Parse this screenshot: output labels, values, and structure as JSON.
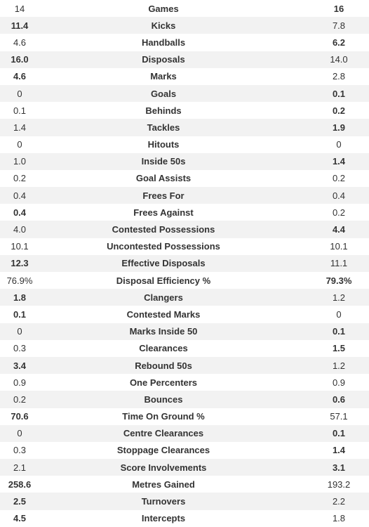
{
  "table": {
    "rows": [
      [
        "14",
        "Games",
        "16"
      ],
      [
        "11.4",
        "Kicks",
        "7.8"
      ],
      [
        "4.6",
        "Handballs",
        "6.2"
      ],
      [
        "16.0",
        "Disposals",
        "14.0"
      ],
      [
        "4.6",
        "Marks",
        "2.8"
      ],
      [
        "0",
        "Goals",
        "0.1"
      ],
      [
        "0.1",
        "Behinds",
        "0.2"
      ],
      [
        "1.4",
        "Tackles",
        "1.9"
      ],
      [
        "0",
        "Hitouts",
        "0"
      ],
      [
        "1.0",
        "Inside 50s",
        "1.4"
      ],
      [
        "0.2",
        "Goal Assists",
        "0.2"
      ],
      [
        "0.4",
        "Frees For",
        "0.4"
      ],
      [
        "0.4",
        "Frees Against",
        "0.2"
      ],
      [
        "4.0",
        "Contested Possessions",
        "4.4"
      ],
      [
        "10.1",
        "Uncontested Possessions",
        "10.1"
      ],
      [
        "12.3",
        "Effective Disposals",
        "11.1"
      ],
      [
        "76.9%",
        "Disposal Efficiency %",
        "79.3%"
      ],
      [
        "1.8",
        "Clangers",
        "1.2"
      ],
      [
        "0.1",
        "Contested Marks",
        "0"
      ],
      [
        "0",
        "Marks Inside 50",
        "0.1"
      ],
      [
        "0.3",
        "Clearances",
        "1.5"
      ],
      [
        "3.4",
        "Rebound 50s",
        "1.2"
      ],
      [
        "0.9",
        "One Percenters",
        "0.9"
      ],
      [
        "0.2",
        "Bounces",
        "0.6"
      ],
      [
        "70.6",
        "Time On Ground %",
        "57.1"
      ],
      [
        "0",
        "Centre Clearances",
        "0.1"
      ],
      [
        "0.3",
        "Stoppage Clearances",
        "1.4"
      ],
      [
        "2.1",
        "Score Involvements",
        "3.1"
      ],
      [
        "258.6",
        "Metres Gained",
        "193.2"
      ],
      [
        "2.5",
        "Turnovers",
        "2.2"
      ],
      [
        "4.5",
        "Intercepts",
        "1.8"
      ]
    ]
  }
}
